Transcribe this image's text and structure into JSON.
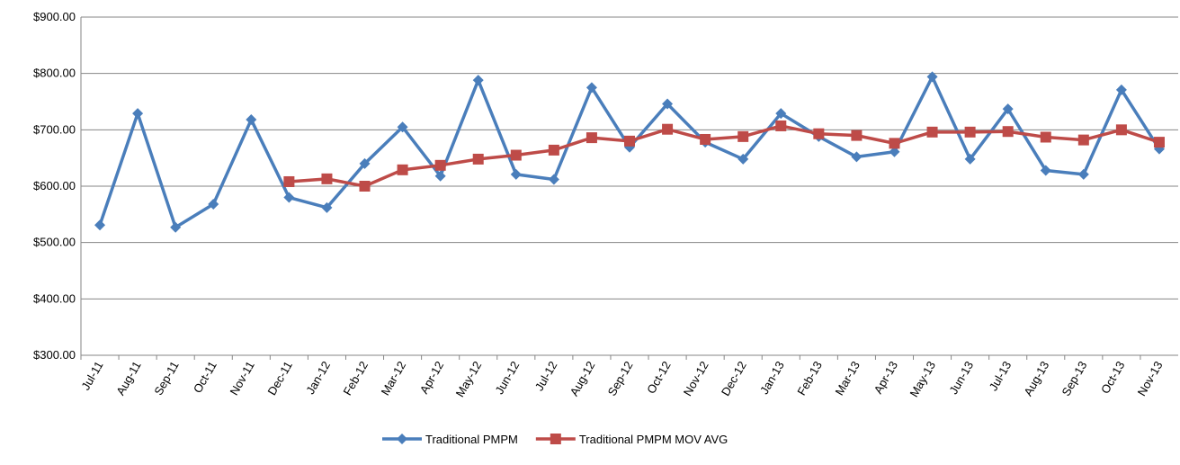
{
  "chart_data": {
    "type": "line",
    "categories": [
      "Jul-11",
      "Aug-11",
      "Sep-11",
      "Oct-11",
      "Nov-11",
      "Dec-11",
      "Jan-12",
      "Feb-12",
      "Mar-12",
      "Apr-12",
      "May-12",
      "Jun-12",
      "Jul-12",
      "Aug-12",
      "Sep-12",
      "Oct-12",
      "Nov-12",
      "Dec-12",
      "Jan-13",
      "Feb-13",
      "Mar-13",
      "Apr-13",
      "May-13",
      "Jun-13",
      "Jul-13",
      "Aug-13",
      "Sep-13",
      "Oct-13",
      "Nov-13"
    ],
    "series": [
      {
        "name": "Traditional PMPM",
        "color": "#4a7ebb",
        "marker": "diamond",
        "values": [
          531,
          729,
          527,
          568,
          718,
          580,
          562,
          640,
          705,
          618,
          788,
          621,
          612,
          775,
          669,
          746,
          678,
          648,
          729,
          688,
          652,
          661,
          794,
          648,
          737,
          628,
          621,
          771,
          666
        ]
      },
      {
        "name": "Traditional PMPM MOV AVG",
        "color": "#be4b48",
        "marker": "square",
        "values": [
          null,
          null,
          null,
          null,
          null,
          608,
          613,
          600,
          629,
          637,
          648,
          655,
          664,
          686,
          680,
          701,
          683,
          688,
          707,
          693,
          690,
          676,
          696,
          696,
          697,
          687,
          682,
          700,
          678
        ]
      }
    ],
    "ylim": [
      300,
      900
    ],
    "yticks": [
      {
        "value": 300,
        "label": "$300.00"
      },
      {
        "value": 400,
        "label": "$400.00"
      },
      {
        "value": 500,
        "label": "$500.00"
      },
      {
        "value": 600,
        "label": "$600.00"
      },
      {
        "value": 700,
        "label": "$700.00"
      },
      {
        "value": 800,
        "label": "$800.00"
      },
      {
        "value": 900,
        "label": "$900.00"
      }
    ],
    "grid": true,
    "legend": "bottom"
  }
}
